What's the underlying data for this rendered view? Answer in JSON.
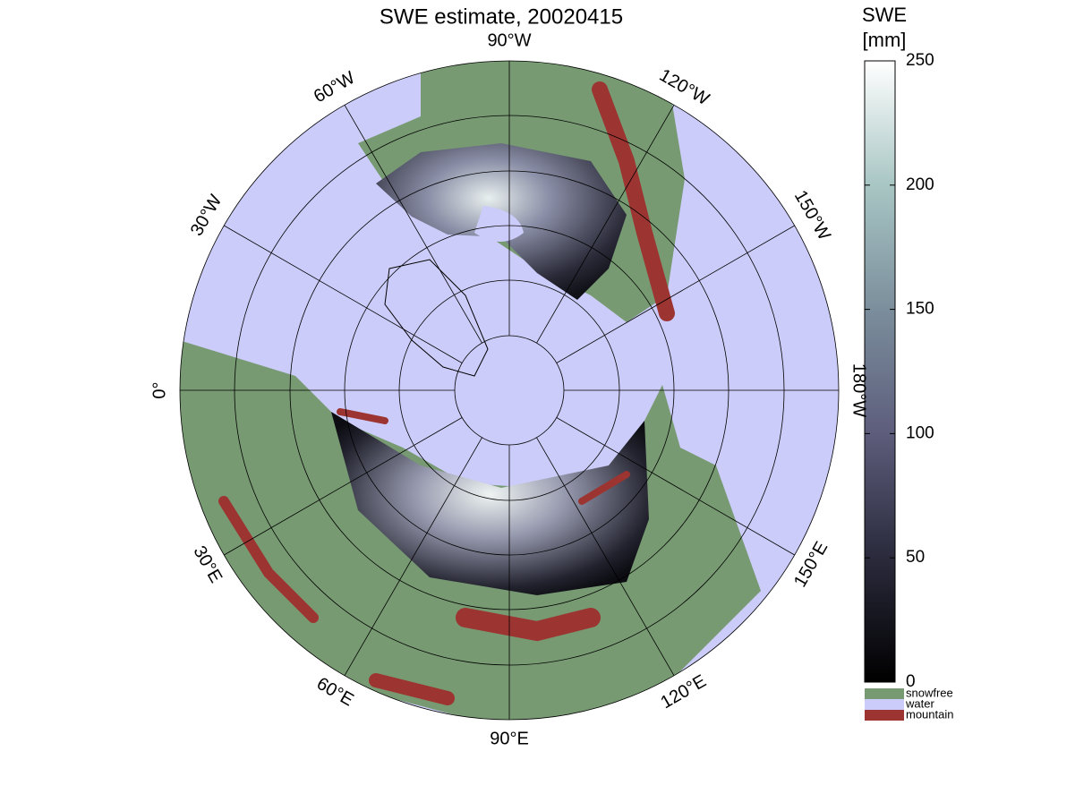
{
  "title": "SWE estimate, 20020415",
  "longitude_labels": [
    "90°W",
    "120°W",
    "150°W",
    "180°W",
    "150°E",
    "120°E",
    "90°E",
    "60°E",
    "30°E",
    "0°",
    "30°W",
    "60°W"
  ],
  "colorbar": {
    "title": [
      "SWE",
      "[mm]"
    ],
    "lim": [
      0,
      250
    ],
    "ticks": [
      0,
      50,
      100,
      150,
      200,
      250
    ]
  },
  "legend": [
    {
      "name": "snowfree",
      "color": "#779a72"
    },
    {
      "name": "water",
      "color": "#ccccfa"
    },
    {
      "name": "mountain",
      "color": "#9c3431"
    }
  ]
}
